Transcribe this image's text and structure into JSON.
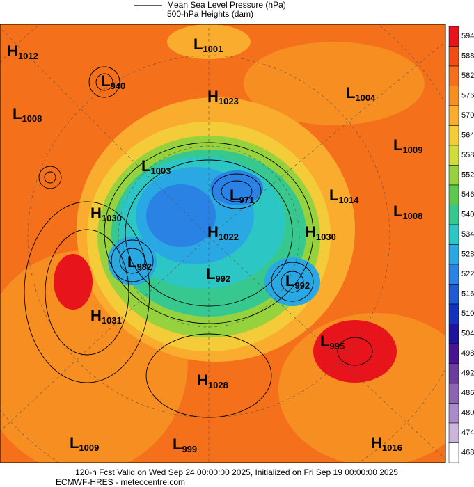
{
  "header": {
    "legend_line_1": "Mean Sea Level Pressure (hPa)",
    "legend_line_2": "500-hPa Heights (dam)"
  },
  "colorbar": {
    "ticks": [
      594,
      588,
      582,
      576,
      570,
      564,
      558,
      552,
      546,
      540,
      534,
      528,
      522,
      516,
      510,
      504,
      498,
      492,
      486,
      480,
      474,
      468
    ],
    "colors": [
      "#e8141c",
      "#f04e14",
      "#f4701a",
      "#f78e22",
      "#f9ac2e",
      "#f4cc3a",
      "#cfdc3c",
      "#96d23e",
      "#5cc84e",
      "#36c88e",
      "#2cc6c4",
      "#2aa8e4",
      "#2a82e4",
      "#1e5ad0",
      "#1432bc",
      "#1c149e",
      "#481494",
      "#6c3c9e",
      "#8c64b4",
      "#aa8cc8",
      "#cab6dc",
      "#ffffff"
    ]
  },
  "centers": [
    {
      "kind": "H",
      "value": 1012
    },
    {
      "kind": "L",
      "value": 1001
    },
    {
      "kind": "L",
      "value": 940
    },
    {
      "kind": "H",
      "value": 1023
    },
    {
      "kind": "L",
      "value": 1004
    },
    {
      "kind": "L",
      "value": 1008
    },
    {
      "kind": "L",
      "value": 1009
    },
    {
      "kind": "L",
      "value": 1003
    },
    {
      "kind": "L",
      "value": 971
    },
    {
      "kind": "L",
      "value": 1014
    },
    {
      "kind": "L",
      "value": 1008
    },
    {
      "kind": "H",
      "value": 1030
    },
    {
      "kind": "H",
      "value": 1022
    },
    {
      "kind": "H",
      "value": 1030
    },
    {
      "kind": "L",
      "value": 982
    },
    {
      "kind": "L",
      "value": 992
    },
    {
      "kind": "L",
      "value": 992
    },
    {
      "kind": "H",
      "value": 1031
    },
    {
      "kind": "L",
      "value": 995
    },
    {
      "kind": "H",
      "value": 1028
    },
    {
      "kind": "L",
      "value": 1009
    },
    {
      "kind": "L",
      "value": 999
    },
    {
      "kind": "H",
      "value": 1016
    }
  ],
  "footer": {
    "line_1": "120-h Fcst Valid on Wed Sep 24 00:00:00 2025, Initialized on Fri Sep 19 00:00:00 2025",
    "line_2": "ECMWF-HRES  - meteocentre.com"
  }
}
